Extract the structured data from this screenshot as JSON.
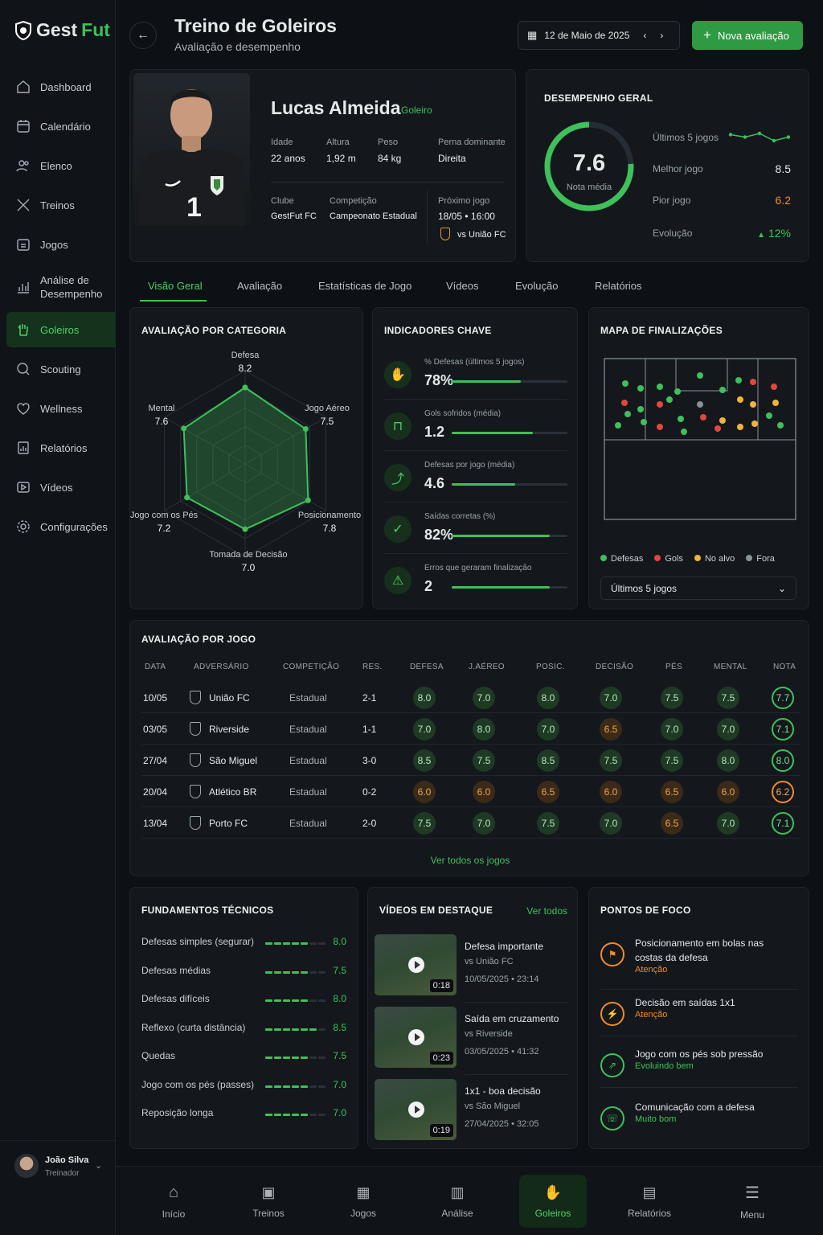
{
  "brand": {
    "name_a": "Gest",
    "name_b": "Fut"
  },
  "nav": [
    {
      "label": "Dashboard",
      "icon": "home-icon"
    },
    {
      "label": "Calendário",
      "icon": "calendar-icon"
    },
    {
      "label": "Elenco",
      "icon": "users-icon"
    },
    {
      "label": "Treinos",
      "icon": "tools-icon"
    },
    {
      "label": "Jogos",
      "icon": "calendar-grid-icon"
    },
    {
      "label": "Análise de Desempenho",
      "icon": "chart-icon"
    },
    {
      "label": "Goleiros",
      "icon": "glove-icon"
    },
    {
      "label": "Scouting",
      "icon": "search-icon"
    },
    {
      "label": "Wellness",
      "icon": "heart-icon"
    },
    {
      "label": "Relatórios",
      "icon": "report-icon"
    },
    {
      "label": "Vídeos",
      "icon": "video-icon"
    },
    {
      "label": "Configurações",
      "icon": "gear-icon"
    }
  ],
  "user": {
    "name": "João Silva",
    "role": "Treinador"
  },
  "header": {
    "title": "Treino de Goleiros",
    "subtitle": "Avaliação e desempenho",
    "date": "12 de Maio de 2025",
    "new_button": "Nova avaliação"
  },
  "player": {
    "name": "Lucas Almeida",
    "position": "Goleiro",
    "number": "1",
    "age_label": "Idade",
    "age": "22 anos",
    "height_label": "Altura",
    "height": "1,92 m",
    "weight_label": "Peso",
    "weight": "84 kg",
    "foot_label": "Perna dominante",
    "foot": "Direita",
    "club_label": "Clube",
    "club": "GestFut FC",
    "comp_label": "Competição",
    "comp": "Campeonato Estadual",
    "next_label": "Próximo jogo",
    "next_date": "18/05 • 16:00",
    "next_opp": "vs União FC"
  },
  "overall": {
    "title": "DESEMPENHO GERAL",
    "score": "7.6",
    "score_label": "Nota média",
    "last5_label": "Últimos 5 jogos",
    "best_label": "Melhor jogo",
    "best": "8.5",
    "worst_label": "Pior jogo",
    "worst": "6.2",
    "evo_label": "Evolução",
    "evo": "12%",
    "last5": [
      7.7,
      7.1,
      8.0,
      6.2,
      7.1
    ]
  },
  "tabs": [
    "Visão Geral",
    "Avaliação",
    "Estatísticas de Jogo",
    "Vídeos",
    "Evolução",
    "Relatórios"
  ],
  "radar": {
    "title": "AVALIAÇÃO POR CATEGORIA",
    "items": [
      {
        "label": "Defesa",
        "value": "8.2"
      },
      {
        "label": "Jogo Aéreo",
        "value": "7.5"
      },
      {
        "label": "Posicionamento",
        "value": "7.8"
      },
      {
        "label": "Tomada de Decisão",
        "value": "7.0"
      },
      {
        "label": "Jogo com os Pés",
        "value": "7.2"
      },
      {
        "label": "Mental",
        "value": "7.6"
      }
    ]
  },
  "kpi": {
    "title": "INDICADORES CHAVE",
    "items": [
      {
        "label": "% Defesas (últimos 5 jogos)",
        "value": "78%",
        "fill": 0.6,
        "icon": "glove-icon"
      },
      {
        "label": "Gols sofridos (média)",
        "value": "1.2",
        "fill": 0.7,
        "icon": "goal-icon"
      },
      {
        "label": "Defesas por jogo (média)",
        "value": "4.6",
        "fill": 0.55,
        "icon": "dive-icon"
      },
      {
        "label": "Saídas corretas (%)",
        "value": "82%",
        "fill": 0.85,
        "icon": "check-icon"
      },
      {
        "label": "Erros que geraram finalização",
        "value": "2",
        "fill": 0.85,
        "icon": "warning-icon"
      }
    ]
  },
  "shotmap": {
    "title": "MAPA DE FINALIZAÇÕES",
    "legend": [
      "Defesas",
      "Gols",
      "No alvo",
      "Fora"
    ],
    "select": "Últimos 5 jogos"
  },
  "games": {
    "title": "AVALIAÇÃO POR JOGO",
    "headers": [
      "DATA",
      "ADVERSÁRIO",
      "COMPETIÇÃO",
      "RES.",
      "DEFESA",
      "J.AÉREO",
      "POSIC.",
      "DECISÃO",
      "PÉS",
      "MENTAL",
      "NOTA"
    ],
    "rows": [
      {
        "date": "10/05",
        "opp": "União FC",
        "comp": "Estadual",
        "res": "2-1",
        "v": [
          "8.0",
          "7.0",
          "8.0",
          "7.0",
          "7.5",
          "7.5"
        ],
        "nota": "7.7"
      },
      {
        "date": "03/05",
        "opp": "Riverside",
        "comp": "Estadual",
        "res": "1-1",
        "v": [
          "7.0",
          "8.0",
          "7.0",
          "6.5",
          "7.0",
          "7.0"
        ],
        "nota": "7.1"
      },
      {
        "date": "27/04",
        "opp": "São Miguel",
        "comp": "Estadual",
        "res": "3-0",
        "v": [
          "8.5",
          "7.5",
          "8.5",
          "7.5",
          "7.5",
          "8.0"
        ],
        "nota": "8.0"
      },
      {
        "date": "20/04",
        "opp": "Atlético BR",
        "comp": "Estadual",
        "res": "0-2",
        "v": [
          "6.0",
          "6.0",
          "6.5",
          "6.0",
          "6.5",
          "6.0"
        ],
        "nota": "6.2"
      },
      {
        "date": "13/04",
        "opp": "Porto FC",
        "comp": "Estadual",
        "res": "2-0",
        "v": [
          "7.5",
          "7.0",
          "7.5",
          "7.0",
          "6.5",
          "7.0"
        ],
        "nota": "7.1"
      }
    ],
    "link": "Ver todos os jogos"
  },
  "fund": {
    "title": "FUNDAMENTOS TÉCNICOS",
    "items": [
      {
        "label": "Defesas simples (segurar)",
        "value": "8.0"
      },
      {
        "label": "Defesas médias",
        "value": "7.5"
      },
      {
        "label": "Defesas difíceis",
        "value": "8.0"
      },
      {
        "label": "Reflexo (curta distância)",
        "value": "8.5"
      },
      {
        "label": "Quedas",
        "value": "7.5"
      },
      {
        "label": "Jogo com os pés (passes)",
        "value": "7.0"
      },
      {
        "label": "Reposição longa",
        "value": "7.0"
      }
    ]
  },
  "videos": {
    "title": "VÍDEOS EM DESTAQUE",
    "link": "Ver todos",
    "items": [
      {
        "title": "Defesa importante",
        "opp": "vs União FC",
        "meta": "10/05/2025 • 23:14",
        "dur": "0:18"
      },
      {
        "title": "Saída em cruzamento",
        "opp": "vs Riverside",
        "meta": "03/05/2025 • 41:32",
        "dur": "0:23"
      },
      {
        "title": "1x1 - boa decisão",
        "opp": "vs São Miguel",
        "meta": "27/04/2025 • 32:05",
        "dur": "0:19"
      }
    ]
  },
  "focus": {
    "title": "PONTOS DE FOCO",
    "items": [
      {
        "title": "Posicionamento em bolas nas costas da defesa",
        "status": "Atenção",
        "tone": "#f08a2a"
      },
      {
        "title": "Decisão em saídas 1x1",
        "status": "Atenção",
        "tone": "#f08a2a"
      },
      {
        "title": "Jogo com os pés sob pressão",
        "status": "Evoluindo bem",
        "tone": "#3fc05a"
      },
      {
        "title": "Comunicação com a defesa",
        "status": "Muito bom",
        "tone": "#3fc05a"
      }
    ]
  },
  "bottom": [
    "Início",
    "Treinos",
    "Jogos",
    "Análise",
    "Goleiros",
    "Relatórios",
    "Menu"
  ],
  "colors": {
    "accent": "#3fc05a",
    "warning": "#f08a2a"
  }
}
